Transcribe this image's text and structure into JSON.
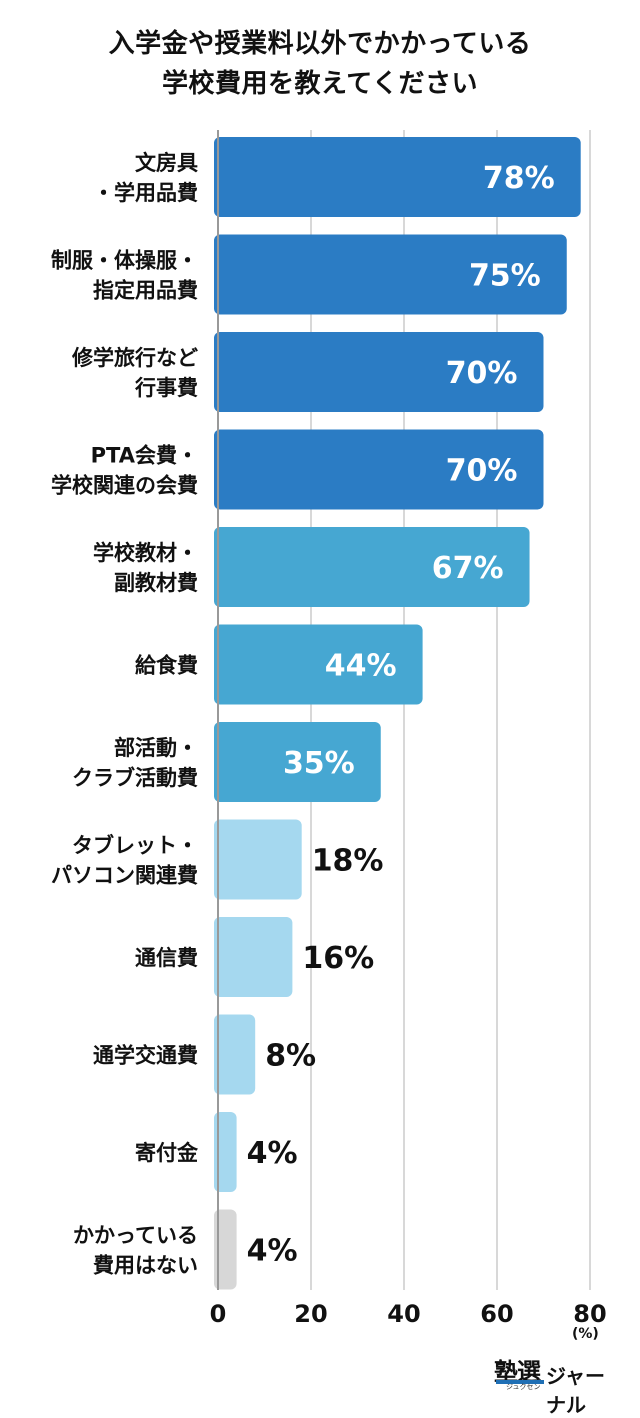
{
  "title_lines": [
    "入学金や授業料以外でかかっている",
    "学校費用を教えてください"
  ],
  "chart_data": {
    "type": "bar",
    "orientation": "horizontal",
    "title": "入学金や授業料以外でかかっている学校費用を教えてください",
    "categories": [
      [
        "文房具",
        "・学用品費"
      ],
      [
        "制服・体操服・",
        "指定用品費"
      ],
      [
        "修学旅行など",
        "行事費"
      ],
      [
        "PTA会費・",
        "学校関連の会費"
      ],
      [
        "学校教材・",
        "副教材費"
      ],
      [
        "給食費"
      ],
      [
        "部活動・",
        "クラブ活動費"
      ],
      [
        "タブレット・",
        "パソコン関連費"
      ],
      [
        "通信費"
      ],
      [
        "通学交通費"
      ],
      [
        "寄付金"
      ],
      [
        "かかっている",
        "費用はない"
      ]
    ],
    "values": [
      78,
      75,
      70,
      70,
      67,
      44,
      35,
      18,
      16,
      8,
      4,
      4
    ],
    "value_labels": [
      "78%",
      "75%",
      "70%",
      "70%",
      "67%",
      "44%",
      "35%",
      "18%",
      "16%",
      "8%",
      "4%",
      "4%"
    ],
    "bar_colors": [
      "#2b7cc4",
      "#2b7cc4",
      "#2b7cc4",
      "#2b7cc4",
      "#46a7d2",
      "#46a7d2",
      "#46a7d2",
      "#a5d8ef",
      "#a5d8ef",
      "#a5d8ef",
      "#a5d8ef",
      "#d7d7d7"
    ],
    "xlim": [
      0,
      80
    ],
    "x_ticks": [
      0,
      20,
      40,
      60,
      80
    ],
    "x_tick_labels": [
      "0",
      "20",
      "40",
      "60",
      "80"
    ],
    "x_unit": "(%)",
    "grid": true
  },
  "logo": {
    "main": "塾選",
    "small": "ジュクセン",
    "sub": "ジャーナル"
  }
}
